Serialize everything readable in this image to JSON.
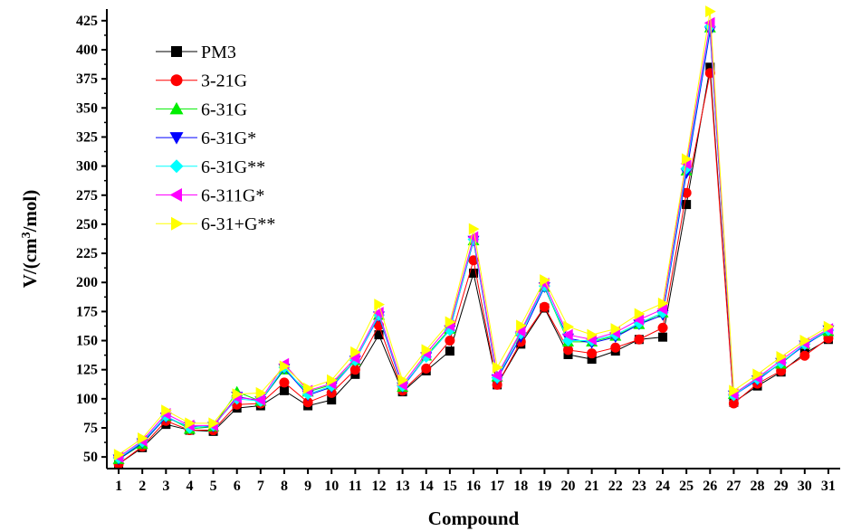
{
  "chart_data": {
    "type": "line",
    "xlabel": "Compound",
    "ylabel_main": "V/(cm",
    "ylabel_sup": "3",
    "ylabel_tail": "/mol)",
    "ylim": [
      40,
      435
    ],
    "xlim": [
      0.5,
      31.5
    ],
    "yticks": [
      50,
      75,
      100,
      125,
      150,
      175,
      200,
      225,
      250,
      275,
      300,
      325,
      350,
      375,
      400,
      425
    ],
    "x": [
      1,
      2,
      3,
      4,
      5,
      6,
      7,
      8,
      9,
      10,
      11,
      12,
      13,
      14,
      15,
      16,
      17,
      18,
      19,
      20,
      21,
      22,
      23,
      24,
      25,
      26,
      27,
      28,
      29,
      30,
      31
    ],
    "grid": false,
    "legend_position": "top-left",
    "series": [
      {
        "name": "PM3",
        "color": "#000000",
        "marker": "square",
        "values": [
          44,
          58,
          78,
          73,
          72,
          92,
          94,
          107,
          94,
          99,
          121,
          155,
          106,
          124,
          141,
          208,
          112,
          147,
          178,
          138,
          134,
          141,
          151,
          153,
          267,
          385,
          97,
          111,
          123,
          139,
          151
        ]
      },
      {
        "name": "3-21G",
        "color": "#ff0000",
        "marker": "circle",
        "values": [
          44,
          59,
          81,
          73,
          73,
          95,
          96,
          114,
          97,
          105,
          125,
          163,
          107,
          126,
          150,
          219,
          112,
          149,
          179,
          142,
          139,
          144,
          151,
          161,
          277,
          380,
          96,
          113,
          124,
          137,
          152
        ]
      },
      {
        "name": "6-31G",
        "color": "#00ee00",
        "marker": "triangle-up",
        "values": [
          48,
          61,
          85,
          74,
          76,
          106,
          98,
          125,
          106,
          112,
          133,
          172,
          110,
          137,
          160,
          236,
          119,
          158,
          196,
          149,
          149,
          154,
          164,
          174,
          296,
          419,
          104,
          118,
          130,
          147,
          158
        ]
      },
      {
        "name": "6-31G*",
        "color": "#0000ff",
        "marker": "triangle-down",
        "values": [
          48,
          62,
          84,
          76,
          76,
          102,
          98,
          126,
          103,
          110,
          133,
          171,
          110,
          136,
          159,
          236,
          117,
          153,
          196,
          152,
          148,
          153,
          164,
          172,
          294,
          416,
          103,
          116,
          131,
          146,
          159
        ]
      },
      {
        "name": "6-31G**",
        "color": "#00ffff",
        "marker": "diamond",
        "values": [
          49,
          63,
          85,
          75,
          77,
          100,
          98,
          127,
          104,
          111,
          133,
          172,
          111,
          136,
          159,
          237,
          118,
          156,
          197,
          150,
          150,
          155,
          165,
          174,
          298,
          420,
          103,
          117,
          131,
          147,
          159
        ]
      },
      {
        "name": "6-311G*",
        "color": "#ff00ff",
        "marker": "triangle-left",
        "values": [
          50,
          64,
          87,
          77,
          77,
          101,
          99,
          130,
          107,
          113,
          135,
          174,
          112,
          139,
          163,
          239,
          120,
          158,
          199,
          155,
          151,
          157,
          168,
          177,
          302,
          423,
          104,
          118,
          133,
          148,
          160
        ]
      },
      {
        "name": "6-31+G**",
        "color": "#ffff00",
        "marker": "triangle-right",
        "values": [
          52,
          66,
          90,
          79,
          79,
          104,
          105,
          128,
          109,
          116,
          140,
          181,
          116,
          142,
          166,
          246,
          127,
          163,
          202,
          162,
          155,
          160,
          173,
          182,
          306,
          433,
          107,
          121,
          136,
          150,
          162
        ]
      }
    ]
  }
}
